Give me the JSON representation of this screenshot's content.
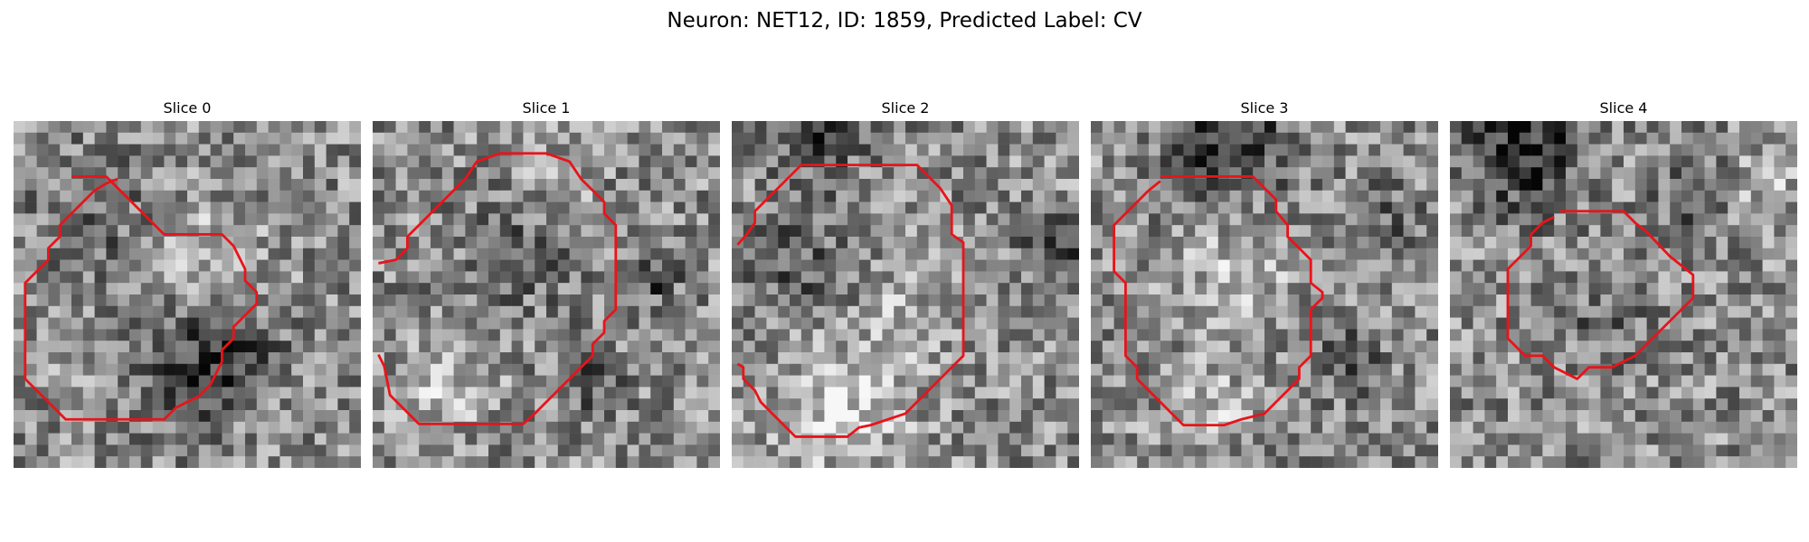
{
  "figure": {
    "title": "Neuron: NET12, ID: 1859, Predicted Label: CV",
    "outline_color": "#e8141a",
    "colormap": "gray",
    "grid_size": 30,
    "panels": [
      {
        "title": "Slice 0",
        "contour": [
          [
            5,
            4.8
          ],
          [
            8,
            4.8
          ],
          [
            9,
            5.8
          ],
          [
            10,
            6.8
          ],
          [
            11,
            7.8
          ],
          [
            13,
            9.8
          ],
          [
            18,
            9.8
          ],
          [
            19,
            10.8
          ],
          [
            20,
            12.8
          ],
          [
            20,
            13.8
          ],
          [
            21,
            14.8
          ],
          [
            21,
            15.8
          ],
          [
            20,
            16.8
          ],
          [
            19,
            17.8
          ],
          [
            19,
            18.8
          ],
          [
            18,
            19.8
          ],
          [
            18,
            20.8
          ],
          [
            17,
            22.8
          ],
          [
            16,
            23.8
          ],
          [
            14,
            24.8
          ],
          [
            13,
            25.8
          ],
          [
            4.5,
            25.8
          ],
          [
            2,
            23.3
          ],
          [
            1,
            22.3
          ],
          [
            1,
            14
          ],
          [
            3,
            12
          ],
          [
            3,
            11
          ],
          [
            4,
            10
          ],
          [
            4,
            9
          ],
          [
            5,
            8
          ],
          [
            6,
            7
          ],
          [
            7,
            6
          ],
          [
            8,
            5.4
          ],
          [
            9,
            5
          ]
        ],
        "dark_spots": [
          [
            14,
            21,
            5,
            0.35
          ],
          [
            20,
            20,
            3,
            0.25
          ],
          [
            7,
            8,
            6,
            0.15
          ]
        ],
        "light_spots": [
          [
            15,
            11,
            5,
            0.2
          ],
          [
            8,
            20,
            4,
            0.12
          ]
        ]
      },
      {
        "title": "Slice 1",
        "contour": [
          [
            0.5,
            12.3
          ],
          [
            2,
            12
          ],
          [
            3,
            11
          ],
          [
            3,
            10
          ],
          [
            4,
            9
          ],
          [
            5,
            8
          ],
          [
            6,
            7
          ],
          [
            7,
            6
          ],
          [
            8,
            5
          ],
          [
            9,
            3.5
          ],
          [
            11,
            2.8
          ],
          [
            15,
            2.8
          ],
          [
            17,
            3.5
          ],
          [
            18,
            5
          ],
          [
            19,
            6
          ],
          [
            20,
            7
          ],
          [
            20,
            8
          ],
          [
            21,
            9
          ],
          [
            21,
            10
          ],
          [
            21,
            11
          ],
          [
            21,
            12
          ],
          [
            21,
            13
          ],
          [
            21,
            16.3
          ],
          [
            20,
            17.3
          ],
          [
            20,
            18.3
          ],
          [
            19,
            19.3
          ],
          [
            19,
            20.3
          ],
          [
            18,
            21.3
          ],
          [
            16,
            23.3
          ],
          [
            15,
            24.3
          ],
          [
            14,
            25.3
          ],
          [
            13,
            26.2
          ],
          [
            4,
            26.2
          ],
          [
            1.5,
            23.7
          ],
          [
            1,
            21.2
          ],
          [
            0.5,
            20.2
          ]
        ],
        "dark_spots": [
          [
            12,
            11,
            5,
            0.15
          ],
          [
            24,
            13,
            2,
            0.3
          ],
          [
            18,
            22,
            3,
            0.2
          ]
        ],
        "light_spots": [
          [
            6,
            22,
            4,
            0.2
          ],
          [
            15,
            5,
            3,
            0.12
          ]
        ]
      },
      {
        "title": "Slice 2",
        "contour": [
          [
            0.5,
            10.7
          ],
          [
            1.3,
            9.8
          ],
          [
            2,
            8.8
          ],
          [
            2,
            7.8
          ],
          [
            3,
            6.8
          ],
          [
            5,
            4.8
          ],
          [
            6,
            3.8
          ],
          [
            16,
            3.8
          ],
          [
            18,
            5.8
          ],
          [
            19,
            7.3
          ],
          [
            19,
            9.8
          ],
          [
            20,
            10.5
          ],
          [
            20,
            20.3
          ],
          [
            19,
            21.3
          ],
          [
            18,
            22.3
          ],
          [
            17,
            23.3
          ],
          [
            16,
            24.3
          ],
          [
            15,
            25.3
          ],
          [
            12,
            26.3
          ],
          [
            11,
            26.5
          ],
          [
            10,
            27.3
          ],
          [
            5.5,
            27.3
          ],
          [
            4.5,
            26.3
          ],
          [
            3.5,
            25.3
          ],
          [
            2.5,
            24.3
          ],
          [
            2,
            23.3
          ],
          [
            1,
            22.3
          ],
          [
            1,
            21.3
          ],
          [
            0.5,
            21.0
          ]
        ],
        "dark_spots": [
          [
            7,
            0,
            4,
            0.35
          ],
          [
            28,
            11,
            3,
            0.3
          ],
          [
            5,
            12,
            5,
            0.2
          ]
        ],
        "light_spots": [
          [
            9,
            24,
            6,
            0.25
          ],
          [
            14,
            15,
            4,
            0.12
          ]
        ]
      },
      {
        "title": "Slice 3",
        "contour": [
          [
            6,
            4.8
          ],
          [
            14,
            4.8
          ],
          [
            15,
            5.8
          ],
          [
            16,
            6.8
          ],
          [
            16,
            7.8
          ],
          [
            17,
            9.0
          ],
          [
            17,
            10
          ],
          [
            19,
            12
          ],
          [
            19,
            13
          ],
          [
            19,
            14
          ],
          [
            20,
            14.8
          ],
          [
            20,
            15.3
          ],
          [
            19,
            16.3
          ],
          [
            19,
            17.3
          ],
          [
            19,
            19.3
          ],
          [
            19,
            20.3
          ],
          [
            18,
            21.3
          ],
          [
            18,
            22.3
          ],
          [
            17,
            23.3
          ],
          [
            16,
            24.3
          ],
          [
            15,
            25.3
          ],
          [
            13,
            25.8
          ],
          [
            11.5,
            26.3
          ],
          [
            8,
            26.3
          ],
          [
            7,
            25.3
          ],
          [
            6,
            24.3
          ],
          [
            5,
            23.3
          ],
          [
            4,
            22.3
          ],
          [
            4,
            21.3
          ],
          [
            3,
            20.3
          ],
          [
            3,
            19.3
          ],
          [
            3,
            14
          ],
          [
            2,
            13
          ],
          [
            2,
            9
          ],
          [
            3,
            8
          ],
          [
            4,
            7
          ],
          [
            5,
            6
          ],
          [
            6,
            5.2
          ]
        ],
        "dark_spots": [
          [
            11,
            1,
            5,
            0.4
          ],
          [
            22,
            20,
            3,
            0.2
          ],
          [
            25,
            8,
            3,
            0.15
          ]
        ],
        "light_spots": [
          [
            12,
            13,
            5,
            0.18
          ],
          [
            10,
            24,
            4,
            0.15
          ]
        ]
      },
      {
        "title": "Slice 4",
        "contour": [
          [
            9.5,
            7.8
          ],
          [
            15,
            7.8
          ],
          [
            16,
            8.8
          ],
          [
            17,
            9.6
          ],
          [
            19,
            11.7
          ],
          [
            21,
            13.3
          ],
          [
            21,
            15.3
          ],
          [
            20,
            16.3
          ],
          [
            19,
            17.3
          ],
          [
            18,
            18.3
          ],
          [
            17,
            19.3
          ],
          [
            16,
            20.3
          ],
          [
            14,
            21.3
          ],
          [
            13,
            21.3
          ],
          [
            12,
            21.3
          ],
          [
            12,
            21.3
          ],
          [
            11,
            22.3
          ],
          [
            9,
            21.3
          ],
          [
            8,
            20.3
          ],
          [
            6.5,
            20.3
          ],
          [
            6,
            19.8
          ],
          [
            5,
            18.8
          ],
          [
            5,
            17.8
          ],
          [
            5,
            12.8
          ],
          [
            6,
            11.8
          ],
          [
            7,
            10.8
          ],
          [
            7,
            9.8
          ],
          [
            8,
            8.8
          ],
          [
            9,
            8.3
          ]
        ],
        "dark_spots": [
          [
            6,
            2,
            5,
            0.4
          ],
          [
            13,
            16,
            4,
            0.18
          ],
          [
            20,
            6,
            3,
            0.2
          ]
        ],
        "light_spots": [
          [
            13,
            13,
            3,
            0.15
          ],
          [
            27,
            5,
            3,
            0.15
          ]
        ]
      }
    ]
  }
}
